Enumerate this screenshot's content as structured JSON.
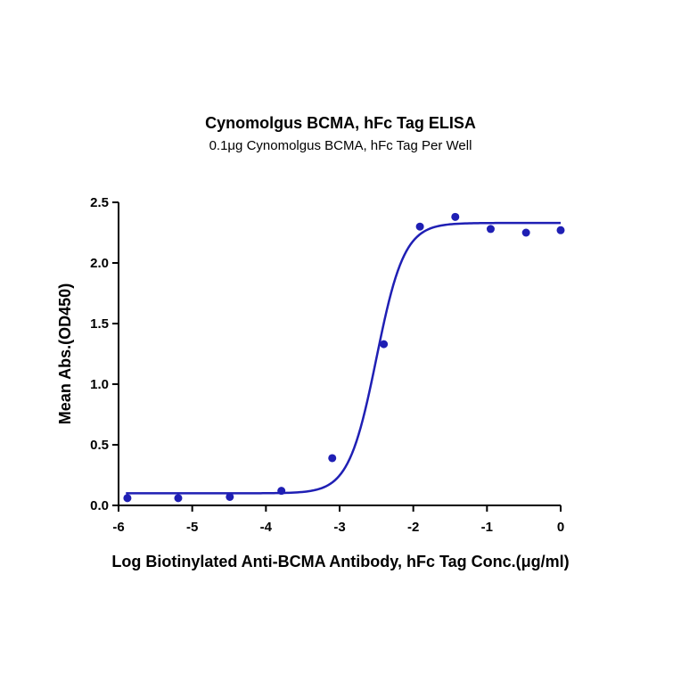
{
  "chart_data": {
    "type": "scatter",
    "title": "Cynomolgus BCMA, hFc Tag ELISA",
    "subtitle": "0.1μg Cynomolgus BCMA, hFc Tag Per Well",
    "xlabel": "Log Biotinylated Anti-BCMA Antibody, hFc Tag Conc.(μg/ml)",
    "ylabel": "Mean Abs.(OD450)",
    "xlim": [
      -6,
      0
    ],
    "ylim": [
      0,
      2.5
    ],
    "xticks": [
      "-6",
      "-5",
      "-4",
      "-3",
      "-2",
      "-1",
      "0"
    ],
    "yticks": [
      "0.0",
      "0.5",
      "1.0",
      "1.5",
      "2.0",
      "2.5"
    ],
    "grid": false,
    "color": "#1f1fb4",
    "points": [
      {
        "x": -5.88,
        "y": 0.06
      },
      {
        "x": -5.19,
        "y": 0.06
      },
      {
        "x": -4.49,
        "y": 0.07
      },
      {
        "x": -3.79,
        "y": 0.12
      },
      {
        "x": -3.1,
        "y": 0.39
      },
      {
        "x": -2.4,
        "y": 1.33
      },
      {
        "x": -1.91,
        "y": 2.3
      },
      {
        "x": -1.43,
        "y": 2.38
      },
      {
        "x": -0.95,
        "y": 2.28
      },
      {
        "x": -0.47,
        "y": 2.25
      },
      {
        "x": 0.0,
        "y": 2.27
      }
    ],
    "fit": {
      "bottom": 0.1,
      "top": 2.33,
      "logEC50": -2.5,
      "hill": 2.3,
      "xrange": [
        -5.9,
        0
      ]
    }
  }
}
